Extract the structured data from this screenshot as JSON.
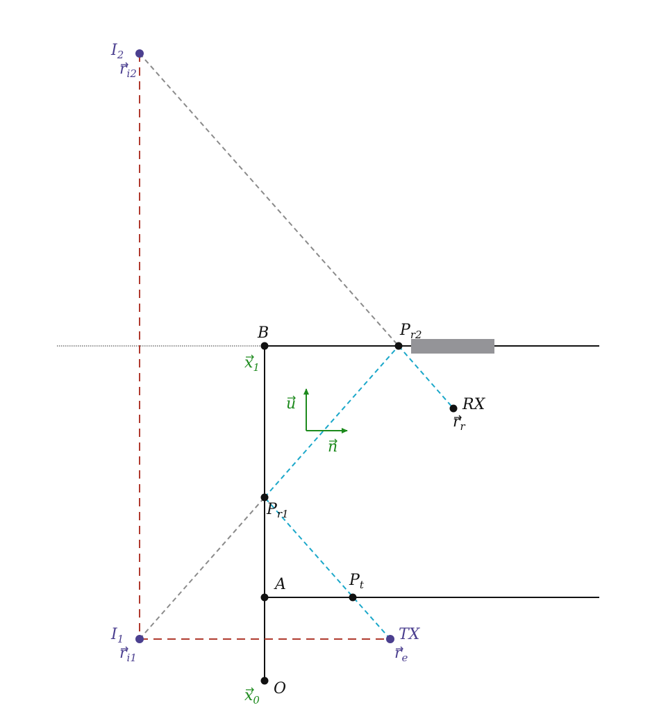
{
  "colors": {
    "black": "#111111",
    "purple": "#4b3f8f",
    "green": "#1d8a1d",
    "cyan": "#1aa7c9",
    "red": "#b03a2e",
    "gray": "#8a8a8a",
    "obstacle": "#949498"
  },
  "points": {
    "I2": {
      "name": "I",
      "sub": "2",
      "vec": "r",
      "vec_sub": "i2"
    },
    "I1": {
      "name": "I",
      "sub": "1",
      "vec": "r",
      "vec_sub": "i1"
    },
    "B": {
      "name": "B",
      "vec": "x",
      "vec_sub": "1"
    },
    "Pr2": {
      "name": "P",
      "sub": "r2"
    },
    "Pr1": {
      "name": "P",
      "sub": "r1"
    },
    "A": {
      "name": "A"
    },
    "Pt": {
      "name": "P",
      "sub": "t"
    },
    "O": {
      "name": "O",
      "vec": "x",
      "vec_sub": "0"
    },
    "RX": {
      "name": "RX",
      "vec": "r",
      "vec_sub": "r"
    },
    "TX": {
      "name": "TX",
      "vec": "r",
      "vec_sub": "e"
    }
  },
  "vectors": {
    "u": {
      "name": "u"
    },
    "n": {
      "name": "n"
    }
  }
}
